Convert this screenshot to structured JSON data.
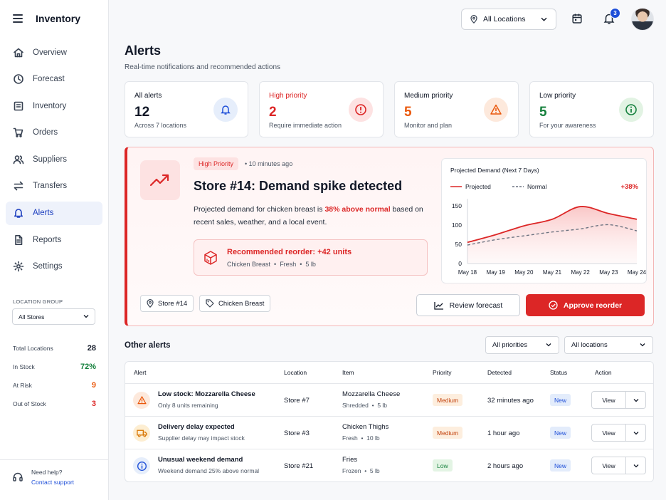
{
  "app": {
    "title": "Inventory"
  },
  "sidebar": {
    "items": [
      {
        "label": "Overview",
        "icon": "home-icon"
      },
      {
        "label": "Forecast",
        "icon": "clock-icon"
      },
      {
        "label": "Inventory",
        "icon": "box-icon"
      },
      {
        "label": "Orders",
        "icon": "cart-icon"
      },
      {
        "label": "Suppliers",
        "icon": "users-icon"
      },
      {
        "label": "Transfers",
        "icon": "arrows-icon"
      },
      {
        "label": "Alerts",
        "icon": "bell-icon",
        "active": true
      },
      {
        "label": "Reports",
        "icon": "document-icon"
      },
      {
        "label": "Settings",
        "icon": "gear-icon"
      }
    ],
    "location_group_label": "LOCATION GROUP",
    "location_group_value": "All Stores",
    "stats": [
      {
        "label": "Total Locations",
        "value": "28"
      },
      {
        "label": "In Stock",
        "value": "72%"
      },
      {
        "label": "At Risk",
        "value": "9"
      },
      {
        "label": "Out of Stock",
        "value": "3"
      }
    ],
    "help": {
      "title": "Need help?",
      "link": "Contact support"
    }
  },
  "topbar": {
    "location_selected": "All Locations",
    "notification_count": "3"
  },
  "header": {
    "title": "Alerts",
    "subtitle": "Real-time notifications and recommended actions"
  },
  "summary_cards": [
    {
      "label": "All alerts",
      "count": "12",
      "sub": "Across 7 locations",
      "color": "#111827"
    },
    {
      "label": "High priority",
      "count": "2",
      "sub": "Require immediate action",
      "color": "#dc2626"
    },
    {
      "label": "Medium priority",
      "count": "5",
      "sub": "Monitor and plan",
      "color": "#ea580c"
    },
    {
      "label": "Low priority",
      "count": "5",
      "sub": "For your awareness",
      "color": "#15803d"
    }
  ],
  "hero": {
    "priority": "High Priority",
    "time": "10 minutes ago",
    "title": "Store #14: Demand spike detected",
    "desc_before": "Projected demand for chicken breast is ",
    "desc_highlight": "38% above normal",
    "desc_after": " based on recent sales, weather, and a local event.",
    "reorder_title": "Recommended reorder: +42 units",
    "reorder_product": "Chicken Breast",
    "reorder_type": "Fresh",
    "reorder_size": "5 lb",
    "tags": [
      "Store #14",
      "Chicken Breast"
    ],
    "review_label": "Review forecast",
    "approve_label": "Approve reorder"
  },
  "chart_data": {
    "type": "area",
    "title": "Projected Demand (Next 7 Days)",
    "delta_label": "+38%",
    "categories": [
      "May 18",
      "May 19",
      "May 20",
      "May 21",
      "May 22",
      "May 23",
      "May 24"
    ],
    "yticks": [
      0,
      50,
      100,
      150
    ],
    "ylim": [
      0,
      160
    ],
    "series": [
      {
        "name": "Projected",
        "values": [
          55,
          75,
          98,
          115,
          148,
          130,
          115
        ],
        "color": "#dc2626",
        "style": "solid"
      },
      {
        "name": "Normal",
        "values": [
          48,
          62,
          72,
          82,
          90,
          101,
          85
        ],
        "color": "#6b7280",
        "style": "dashed"
      }
    ]
  },
  "other_alerts": {
    "title": "Other alerts",
    "filter_priority": "All priorities",
    "filter_location": "All locations",
    "columns": [
      "Alert",
      "Location",
      "Item",
      "Priority",
      "Detected",
      "Status",
      "Action"
    ],
    "rows": [
      {
        "title": "Low stock: Mozzarella Cheese",
        "sub": "Only 8 units remaining",
        "location": "Store #7",
        "item": "Mozzarella Cheese",
        "item_type": "Shredded",
        "item_size": "5 lb",
        "priority": "Medium",
        "detected": "32 minutes ago",
        "status": "New",
        "action": "View",
        "icon": "warning-icon"
      },
      {
        "title": "Delivery delay expected",
        "sub": "Supplier delay may impact stock",
        "location": "Store #3",
        "item": "Chicken Thighs",
        "item_type": "Fresh",
        "item_size": "10 lb",
        "priority": "Medium",
        "detected": "1 hour ago",
        "status": "New",
        "action": "View",
        "icon": "truck-icon"
      },
      {
        "title": "Unusual weekend demand",
        "sub": "Weekend demand 25% above normal",
        "location": "Store #21",
        "item": "Fries",
        "item_type": "Frozen",
        "item_size": "5 lb",
        "priority": "Low",
        "detected": "2 hours ago",
        "status": "New",
        "action": "View",
        "icon": "info-icon"
      }
    ]
  }
}
